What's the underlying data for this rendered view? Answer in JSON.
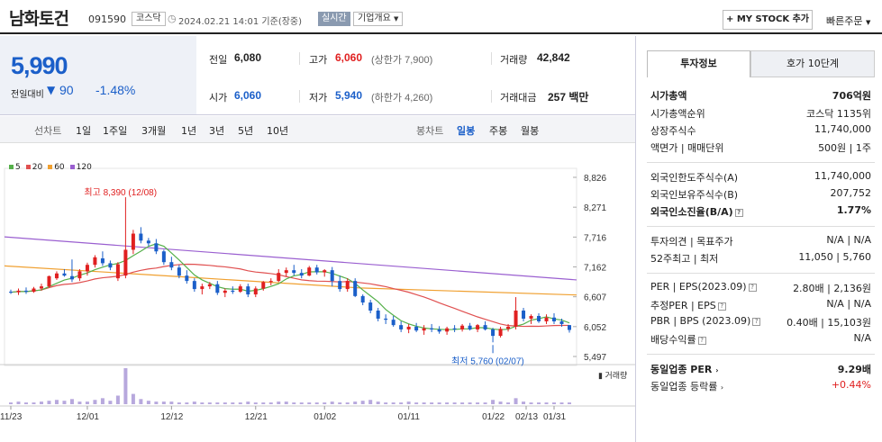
{
  "header": {
    "name": "남화토건",
    "code": "091590",
    "market": "코스닥",
    "datetime": "2024.02.21 14:01 기준(장중)",
    "live_label": "실시간",
    "company_info": "기업개요",
    "mystock_btn": "+ MY STOCK 추가",
    "quick_order": "빠른주문"
  },
  "price": {
    "current": "5,990",
    "change_label": "전일대비",
    "change": "90",
    "change_pct": "-1.48%"
  },
  "quote": {
    "prev_label": "전일",
    "prev": "6,080",
    "high_label": "고가",
    "high": "6,060",
    "upper_limit": "(상한가 7,900)",
    "volume_label": "거래량",
    "volume": "42,842",
    "open_label": "시가",
    "open": "6,060",
    "low_label": "저가",
    "low": "5,940",
    "lower_limit": "(하한가 4,260)",
    "amount_label": "거래대금",
    "amount": "257 백만"
  },
  "periods": {
    "line_label": "선차트",
    "line_items": [
      "1일",
      "1주일",
      "3개월",
      "1년",
      "3년",
      "5년",
      "10년"
    ],
    "candle_label": "봉차트",
    "candle_items": [
      "일봉",
      "주봉",
      "월봉"
    ],
    "selected_candle": "일봉"
  },
  "chart_data": {
    "type": "candlestick",
    "ma_legend": [
      {
        "name": "5",
        "color": "#55b04a"
      },
      {
        "name": "20",
        "color": "#e05050"
      },
      {
        "name": "60",
        "color": "#f0a030"
      },
      {
        "name": "120",
        "color": "#9a5fd0"
      }
    ],
    "y_ticks": [
      "8,826",
      "8,271",
      "7,716",
      "7,162",
      "6,607",
      "6,052",
      "5,497"
    ],
    "ylim": [
      5497,
      8826
    ],
    "x_ticks": [
      "11/23",
      "12/01",
      "12/12",
      "12/21",
      "01/02",
      "01/11",
      "01/22",
      "01/31",
      "02/13"
    ],
    "high_annotation": "최고 8,390 (12/08)",
    "low_annotation": "최저 5,760 (02/07)",
    "volume_label": "거래량",
    "candles": [
      [
        6700,
        6740,
        6660,
        6690
      ],
      [
        6690,
        6760,
        6640,
        6720
      ],
      [
        6720,
        6780,
        6660,
        6700
      ],
      [
        6700,
        6790,
        6680,
        6760
      ],
      [
        6760,
        6850,
        6720,
        6800
      ],
      [
        6800,
        7000,
        6780,
        6990
      ],
      [
        6950,
        7080,
        6920,
        7040
      ],
      [
        7040,
        7120,
        6980,
        7000
      ],
      [
        6990,
        7300,
        6880,
        6930
      ],
      [
        6950,
        7120,
        6900,
        7080
      ],
      [
        7080,
        7240,
        7000,
        7200
      ],
      [
        7200,
        7380,
        7150,
        7340
      ],
      [
        7320,
        7450,
        7180,
        7230
      ],
      [
        7230,
        7280,
        7100,
        7150
      ],
      [
        6950,
        7250,
        6900,
        7210
      ],
      [
        7000,
        8390,
        6950,
        7480
      ],
      [
        7480,
        7850,
        7400,
        7780
      ],
      [
        7780,
        7900,
        7600,
        7650
      ],
      [
        7650,
        7700,
        7550,
        7600
      ],
      [
        7600,
        7680,
        7400,
        7450
      ],
      [
        7450,
        7480,
        7200,
        7250
      ],
      [
        7250,
        7350,
        7100,
        7150
      ],
      [
        7150,
        7200,
        6950,
        7000
      ],
      [
        7000,
        7100,
        6850,
        6900
      ],
      [
        6900,
        6950,
        6700,
        6750
      ],
      [
        6750,
        6850,
        6650,
        6800
      ],
      [
        6800,
        6880,
        6750,
        6840
      ],
      [
        6840,
        6900,
        6640,
        6680
      ],
      [
        6680,
        6760,
        6600,
        6720
      ],
      [
        6720,
        6800,
        6660,
        6700
      ],
      [
        6700,
        6840,
        6680,
        6800
      ],
      [
        6800,
        6850,
        6600,
        6650
      ],
      [
        6650,
        6800,
        6600,
        6760
      ],
      [
        6760,
        6900,
        6720,
        6880
      ],
      [
        6880,
        6950,
        6820,
        6900
      ],
      [
        6900,
        7120,
        6880,
        7050
      ],
      [
        7050,
        7150,
        6980,
        7100
      ],
      [
        7100,
        7200,
        7000,
        7050
      ],
      [
        7050,
        7120,
        6950,
        7000
      ],
      [
        7000,
        7180,
        6990,
        7150
      ],
      [
        7150,
        7200,
        7020,
        7060
      ],
      [
        7060,
        7120,
        6980,
        7100
      ],
      [
        7100,
        7160,
        6800,
        6900
      ],
      [
        6900,
        7000,
        6700,
        6750
      ],
      [
        6750,
        6950,
        6700,
        6900
      ],
      [
        6900,
        6950,
        6600,
        6620
      ],
      [
        6620,
        6650,
        6450,
        6500
      ],
      [
        6500,
        6550,
        6300,
        6350
      ],
      [
        6350,
        6400,
        6150,
        6200
      ],
      [
        6200,
        6280,
        6100,
        6180
      ],
      [
        6180,
        6250,
        6050,
        6080
      ],
      [
        6080,
        6150,
        5950,
        6000
      ],
      [
        6000,
        6100,
        5930,
        6050
      ],
      [
        6050,
        6120,
        5950,
        5980
      ],
      [
        5980,
        6080,
        5900,
        6020
      ],
      [
        6020,
        6100,
        5950,
        6000
      ],
      [
        6000,
        6060,
        5920,
        5960
      ],
      [
        5960,
        6050,
        5900,
        6020
      ],
      [
        6020,
        6080,
        5950,
        6000
      ],
      [
        6000,
        6100,
        5960,
        6070
      ],
      [
        6070,
        6120,
        5980,
        6000
      ],
      [
        6000,
        6100,
        5950,
        6080
      ],
      [
        6080,
        6150,
        5980,
        6000
      ],
      [
        6000,
        6030,
        5760,
        5880
      ],
      [
        5880,
        6050,
        5850,
        6010
      ],
      [
        6010,
        6100,
        5960,
        6050
      ],
      [
        6050,
        6600,
        6000,
        6350
      ],
      [
        6350,
        6400,
        6150,
        6200
      ],
      [
        6200,
        6280,
        6100,
        6250
      ],
      [
        6250,
        6300,
        6120,
        6150
      ],
      [
        6150,
        6280,
        6100,
        6220
      ],
      [
        6220,
        6300,
        6100,
        6150
      ],
      [
        6150,
        6200,
        6050,
        6100
      ],
      [
        6080,
        6080,
        5940,
        5990
      ]
    ],
    "volumes": [
      2,
      3,
      2,
      2,
      3,
      4,
      5,
      4,
      6,
      3,
      3,
      5,
      7,
      4,
      10,
      42,
      12,
      6,
      4,
      3,
      3,
      3,
      2,
      2,
      3,
      2,
      2,
      2,
      2,
      2,
      2,
      3,
      2,
      2,
      2,
      3,
      3,
      2,
      2,
      2,
      2,
      2,
      3,
      2,
      2,
      3,
      4,
      5,
      3,
      2,
      2,
      2,
      3,
      2,
      2,
      2,
      2,
      2,
      2,
      2,
      2,
      2,
      2,
      5,
      3,
      2,
      7,
      3,
      2,
      2,
      2,
      2,
      2,
      2
    ]
  },
  "side": {
    "tab_info": "투자정보",
    "tab_hoga": "호가 10단계",
    "mcap_label": "시가총액",
    "mcap": "706억원",
    "mcap_rank_label": "시가총액순위",
    "mcap_rank": "코스닥 1135위",
    "shares_label": "상장주식수",
    "shares": "11,740,000",
    "par_label": "액면가 | 매매단위",
    "par": "500원 | 1주",
    "foreign_limit_label": "외국인한도주식수(A)",
    "foreign_limit": "11,740,000",
    "foreign_hold_label": "외국인보유주식수(B)",
    "foreign_hold": "207,752",
    "foreign_ratio_label": "외국인소진율(B/A)",
    "foreign_ratio": "1.77%",
    "opinion_label": "투자의견 | 목표주가",
    "opinion": "N/A | N/A",
    "week52_label": "52주최고 | 최저",
    "week52": "11,050 | 5,760",
    "per_label": "PER | EPS(2023.09)",
    "per": "2.80배 | 2,136원",
    "est_per_label": "추정PER | EPS",
    "est_per": "N/A | N/A",
    "pbr_label": "PBR | BPS (2023.09)",
    "pbr": "0.40배 | 15,103원",
    "div_label": "배당수익률",
    "div": "N/A",
    "ind_per_label": "동일업종 PER",
    "ind_per": "9.29배",
    "ind_chg_label": "동일업종 등락률",
    "ind_chg": "+0.44%"
  }
}
